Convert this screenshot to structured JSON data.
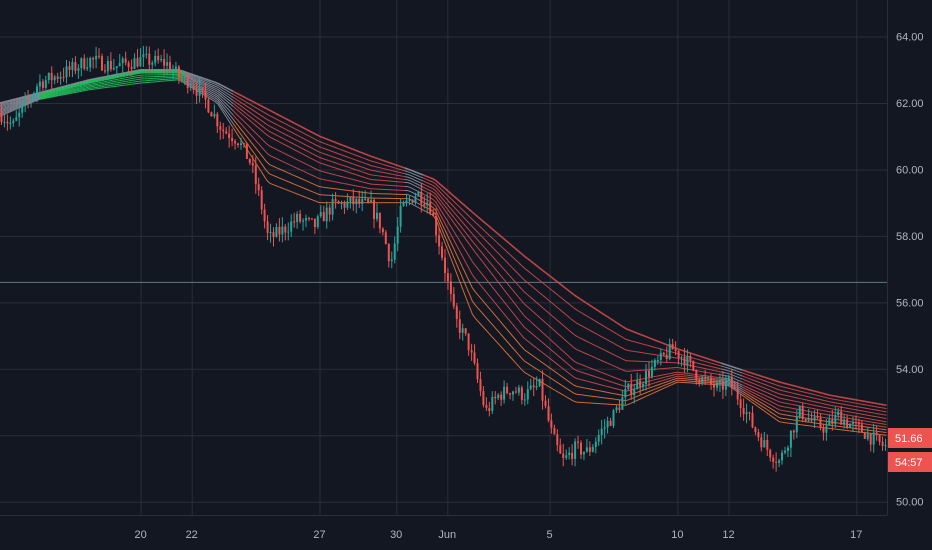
{
  "chart_data": {
    "type": "line",
    "title": "",
    "price_axis": {
      "ylim": [
        49.6,
        65.1
      ],
      "ticks": [
        50,
        52,
        54,
        56,
        58,
        60,
        62,
        64
      ],
      "tick_labels": [
        "50.00",
        "52.00",
        "54.00",
        "56.00",
        "58.00",
        "60.00",
        "62.00",
        "64.00"
      ]
    },
    "time_axis": {
      "ticks": [
        {
          "day": 20,
          "label": "20"
        },
        {
          "day": 22,
          "label": "22"
        },
        {
          "day": 27,
          "label": "27"
        },
        {
          "day": 30,
          "label": "30"
        },
        {
          "day": 32,
          "label": "Jun"
        },
        {
          "day": 36,
          "label": "5"
        },
        {
          "day": 41,
          "label": "10"
        },
        {
          "day": 43,
          "label": "12"
        },
        {
          "day": 48,
          "label": "17"
        }
      ]
    },
    "horizontal_level": 56.6,
    "last_price_label": "51.66",
    "countdown_label": "54:57",
    "colors": {
      "background": "#131722",
      "grid": "#2a2e39",
      "bull": "#26a69a",
      "bear": "#ef5350",
      "ema_long": "#d14a4a",
      "ema_neutral": "#8a8f9c",
      "ema_fast": "#e8733a",
      "ema_bull": "#22c55e"
    },
    "price_path": [
      [
        14.5,
        61.7
      ],
      [
        15.0,
        61.3
      ],
      [
        16.0,
        62.6
      ],
      [
        17.0,
        62.9
      ],
      [
        18.0,
        63.3
      ],
      [
        19.0,
        63.1
      ],
      [
        20.0,
        63.3
      ],
      [
        21.0,
        63.2
      ],
      [
        21.5,
        62.8
      ],
      [
        22.0,
        62.6
      ],
      [
        22.6,
        62.0
      ],
      [
        23.2,
        61.2
      ],
      [
        23.8,
        60.9
      ],
      [
        24.3,
        60.2
      ],
      [
        24.7,
        59.0
      ],
      [
        25.0,
        57.9
      ],
      [
        25.6,
        58.2
      ],
      [
        26.1,
        58.5
      ],
      [
        26.8,
        58.3
      ],
      [
        27.5,
        58.9
      ],
      [
        28.3,
        59.0
      ],
      [
        29.0,
        58.9
      ],
      [
        29.4,
        58.3
      ],
      [
        29.8,
        57.2
      ],
      [
        30.2,
        58.8
      ],
      [
        30.8,
        59.3
      ],
      [
        31.3,
        59.0
      ],
      [
        31.8,
        57.4
      ],
      [
        32.3,
        55.5
      ],
      [
        32.8,
        54.8
      ],
      [
        33.2,
        53.6
      ],
      [
        33.5,
        52.7
      ],
      [
        34.0,
        53.2
      ],
      [
        34.5,
        53.4
      ],
      [
        35.0,
        53.2
      ],
      [
        35.6,
        53.5
      ],
      [
        36.1,
        52.0
      ],
      [
        36.5,
        51.2
      ],
      [
        37.0,
        51.6
      ],
      [
        37.5,
        51.5
      ],
      [
        38.0,
        52.1
      ],
      [
        38.5,
        52.6
      ],
      [
        39.0,
        53.3
      ],
      [
        39.5,
        53.6
      ],
      [
        40.0,
        54.0
      ],
      [
        40.8,
        54.6
      ],
      [
        41.3,
        54.3
      ],
      [
        41.9,
        53.7
      ],
      [
        42.6,
        53.4
      ],
      [
        43.0,
        53.6
      ],
      [
        43.5,
        53.0
      ],
      [
        44.0,
        52.2
      ],
      [
        44.5,
        51.6
      ],
      [
        45.0,
        51.2
      ],
      [
        45.4,
        52.0
      ],
      [
        45.8,
        52.7
      ],
      [
        46.3,
        52.4
      ],
      [
        46.8,
        52.2
      ],
      [
        47.3,
        52.6
      ],
      [
        47.8,
        52.3
      ],
      [
        48.3,
        52.1
      ],
      [
        48.8,
        51.8
      ],
      [
        49.1,
        51.66
      ]
    ],
    "ema_ribbon_long": [
      [
        14.5,
        62.0
      ],
      [
        16.0,
        62.3
      ],
      [
        18.0,
        62.7
      ],
      [
        20.0,
        63.0
      ],
      [
        21.5,
        63.0
      ],
      [
        23.0,
        62.6
      ],
      [
        25.0,
        61.8
      ],
      [
        27.0,
        61.0
      ],
      [
        29.0,
        60.4
      ],
      [
        30.5,
        60.0
      ],
      [
        31.5,
        59.7
      ],
      [
        33.0,
        58.7
      ],
      [
        35.0,
        57.4
      ],
      [
        37.0,
        56.2
      ],
      [
        39.0,
        55.2
      ],
      [
        41.0,
        54.6
      ],
      [
        43.0,
        54.1
      ],
      [
        45.0,
        53.6
      ],
      [
        47.0,
        53.2
      ],
      [
        49.2,
        52.9
      ]
    ],
    "ema_ribbon_mid": [
      [
        14.5,
        61.8
      ],
      [
        16.0,
        62.2
      ],
      [
        18.0,
        62.6
      ],
      [
        20.0,
        62.9
      ],
      [
        21.5,
        62.9
      ],
      [
        23.0,
        62.3
      ],
      [
        25.0,
        61.0
      ],
      [
        27.0,
        60.2
      ],
      [
        29.0,
        59.7
      ],
      [
        30.5,
        59.6
      ],
      [
        31.5,
        59.2
      ],
      [
        33.0,
        57.6
      ],
      [
        35.0,
        55.6
      ],
      [
        37.0,
        54.2
      ],
      [
        39.0,
        53.6
      ],
      [
        41.0,
        53.9
      ],
      [
        43.0,
        53.7
      ],
      [
        45.0,
        53.0
      ],
      [
        47.0,
        52.7
      ],
      [
        49.2,
        52.4
      ]
    ],
    "ema_ribbon_fast": [
      [
        14.5,
        61.6
      ],
      [
        16.0,
        62.1
      ],
      [
        18.0,
        62.4
      ],
      [
        20.0,
        62.6
      ],
      [
        21.5,
        62.7
      ],
      [
        23.0,
        62.0
      ],
      [
        25.0,
        59.6
      ],
      [
        27.0,
        59.0
      ],
      [
        29.0,
        59.0
      ],
      [
        30.5,
        59.0
      ],
      [
        31.5,
        58.6
      ],
      [
        33.0,
        55.6
      ],
      [
        35.0,
        53.9
      ],
      [
        37.0,
        53.0
      ],
      [
        39.0,
        52.9
      ],
      [
        41.0,
        53.6
      ],
      [
        43.0,
        53.5
      ],
      [
        45.0,
        52.4
      ],
      [
        47.0,
        52.2
      ],
      [
        49.2,
        52.0
      ]
    ]
  }
}
